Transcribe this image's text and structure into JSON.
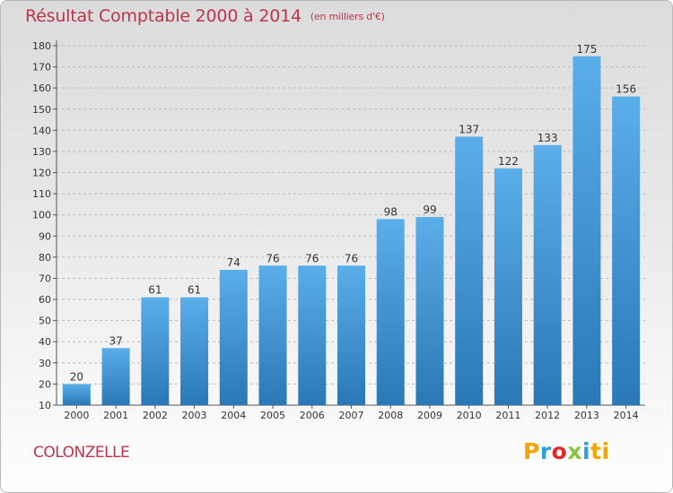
{
  "header": {
    "title": "Résultat Comptable 2000 à 2014",
    "subtitle": "(en milliers d'€)"
  },
  "footer": {
    "commune": "COLONZELLE",
    "brand_letters": [
      "P",
      "r",
      "o",
      "x",
      "i",
      "ti"
    ]
  },
  "colors": {
    "title": "#c0344b",
    "bar_light": "#5aaeea",
    "bar_dark": "#2a78b6",
    "grid": "#bdbdbd"
  },
  "chart_data": {
    "type": "bar",
    "title": "Résultat Comptable 2000 à 2014",
    "subtitle": "(en milliers d'€)",
    "categories": [
      "2000",
      "2001",
      "2002",
      "2003",
      "2004",
      "2005",
      "2006",
      "2007",
      "2008",
      "2009",
      "2010",
      "2011",
      "2012",
      "2013",
      "2014"
    ],
    "values": [
      20,
      37,
      61,
      61,
      74,
      76,
      76,
      76,
      98,
      99,
      137,
      122,
      133,
      175,
      156
    ],
    "ylim": [
      10,
      180
    ],
    "yticks": [
      10,
      20,
      30,
      40,
      50,
      60,
      70,
      80,
      90,
      100,
      110,
      120,
      130,
      140,
      150,
      160,
      170,
      180
    ],
    "grid": true,
    "data_labels": true
  }
}
